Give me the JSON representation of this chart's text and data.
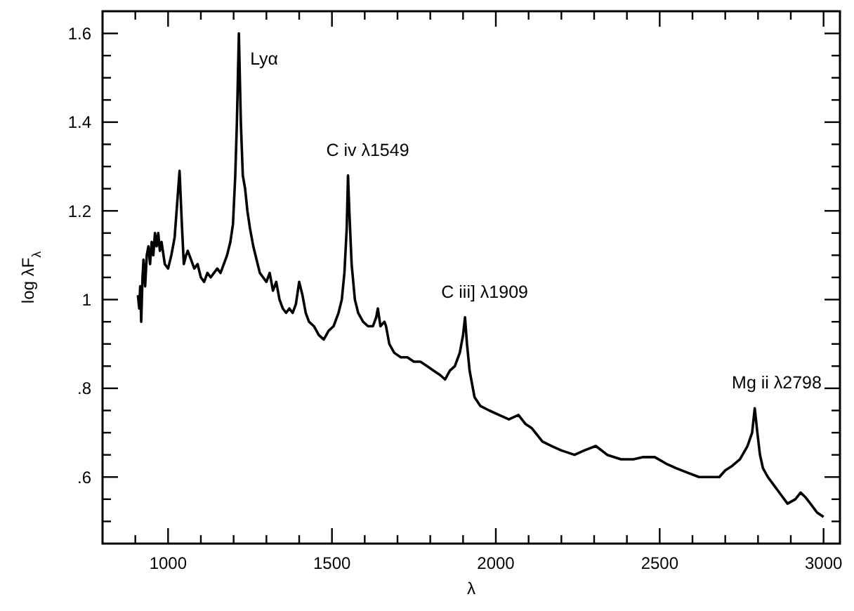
{
  "chart_data": {
    "type": "line",
    "xlabel": "λ",
    "ylabel": "log λF$_{λ}$",
    "x": [
      908,
      912,
      915,
      918,
      922,
      925,
      930,
      935,
      940,
      945,
      950,
      955,
      960,
      965,
      970,
      975,
      980,
      990,
      1000,
      1010,
      1020,
      1028,
      1035,
      1042,
      1048,
      1055,
      1060,
      1070,
      1080,
      1090,
      1100,
      1110,
      1120,
      1130,
      1140,
      1150,
      1160,
      1170,
      1180,
      1190,
      1198,
      1205,
      1210,
      1216,
      1222,
      1228,
      1235,
      1242,
      1250,
      1260,
      1270,
      1280,
      1290,
      1300,
      1310,
      1320,
      1330,
      1340,
      1350,
      1360,
      1370,
      1380,
      1390,
      1400,
      1410,
      1420,
      1430,
      1445,
      1460,
      1475,
      1490,
      1505,
      1520,
      1530,
      1538,
      1545,
      1549,
      1553,
      1560,
      1570,
      1580,
      1595,
      1610,
      1625,
      1635,
      1640,
      1648,
      1660,
      1665,
      1675,
      1690,
      1710,
      1730,
      1750,
      1770,
      1790,
      1810,
      1830,
      1845,
      1860,
      1875,
      1890,
      1900,
      1906,
      1912,
      1920,
      1935,
      1953,
      1980,
      2010,
      2040,
      2069,
      2090,
      2110,
      2142,
      2170,
      2200,
      2240,
      2270,
      2305,
      2340,
      2382,
      2420,
      2450,
      2485,
      2520,
      2550,
      2584,
      2620,
      2650,
      2682,
      2700,
      2721,
      2745,
      2768,
      2782,
      2790,
      2798,
      2806,
      2815,
      2830,
      2850,
      2870,
      2890,
      2914,
      2930,
      2944,
      2960,
      2980,
      3000
    ],
    "values": [
      1.01,
      0.98,
      1.03,
      0.95,
      1.05,
      1.09,
      1.03,
      1.1,
      1.12,
      1.08,
      1.13,
      1.1,
      1.15,
      1.12,
      1.15,
      1.11,
      1.13,
      1.08,
      1.07,
      1.1,
      1.14,
      1.22,
      1.29,
      1.17,
      1.08,
      1.1,
      1.11,
      1.09,
      1.07,
      1.08,
      1.05,
      1.04,
      1.06,
      1.05,
      1.06,
      1.07,
      1.06,
      1.08,
      1.1,
      1.13,
      1.17,
      1.28,
      1.4,
      1.6,
      1.4,
      1.28,
      1.25,
      1.2,
      1.16,
      1.12,
      1.09,
      1.06,
      1.05,
      1.04,
      1.06,
      1.02,
      1.04,
      1.0,
      0.98,
      0.97,
      0.98,
      0.97,
      0.99,
      1.04,
      1.01,
      0.97,
      0.95,
      0.94,
      0.92,
      0.91,
      0.93,
      0.94,
      0.97,
      1.0,
      1.06,
      1.16,
      1.28,
      1.2,
      1.08,
      1.0,
      0.97,
      0.95,
      0.94,
      0.94,
      0.96,
      0.98,
      0.94,
      0.95,
      0.94,
      0.9,
      0.88,
      0.87,
      0.87,
      0.86,
      0.86,
      0.85,
      0.84,
      0.83,
      0.82,
      0.84,
      0.85,
      0.88,
      0.92,
      0.96,
      0.9,
      0.84,
      0.78,
      0.76,
      0.75,
      0.74,
      0.73,
      0.74,
      0.72,
      0.71,
      0.68,
      0.67,
      0.66,
      0.65,
      0.66,
      0.67,
      0.65,
      0.64,
      0.64,
      0.645,
      0.645,
      0.63,
      0.62,
      0.61,
      0.6,
      0.6,
      0.6,
      0.615,
      0.625,
      0.64,
      0.67,
      0.7,
      0.755,
      0.7,
      0.65,
      0.62,
      0.6,
      0.58,
      0.56,
      0.54,
      0.55,
      0.565,
      0.555,
      0.54,
      0.52,
      0.51
    ],
    "color": "#000000",
    "xlim": [
      800,
      3050
    ],
    "ylim": [
      0.45,
      1.65
    ],
    "xticks": [
      {
        "value": 900,
        "label": null
      },
      1000,
      {
        "value": 1100,
        "label": null
      },
      {
        "value": 1200,
        "label": null
      },
      {
        "value": 1300,
        "label": null
      },
      {
        "value": 1400,
        "label": null
      },
      1500,
      {
        "value": 1600,
        "label": null
      },
      {
        "value": 1700,
        "label": null
      },
      {
        "value": 1800,
        "label": null
      },
      {
        "value": 1900,
        "label": null
      },
      2000,
      {
        "value": 2100,
        "label": null
      },
      {
        "value": 2200,
        "label": null
      },
      {
        "value": 2300,
        "label": null
      },
      {
        "value": 2400,
        "label": null
      },
      2500,
      {
        "value": 2600,
        "label": null
      },
      {
        "value": 2700,
        "label": null
      },
      {
        "value": 2800,
        "label": null
      },
      {
        "value": 2900,
        "label": null
      },
      3000
    ],
    "yticks": [
      {
        "value": 0.5,
        "label": null
      },
      {
        "value": 0.55,
        "label": null
      },
      {
        "value": 0.6,
        "label": ".6"
      },
      {
        "value": 0.65,
        "label": null
      },
      {
        "value": 0.7,
        "label": null
      },
      {
        "value": 0.75,
        "label": null
      },
      {
        "value": 0.8,
        "label": ".8"
      },
      {
        "value": 0.85,
        "label": null
      },
      {
        "value": 0.9,
        "label": null
      },
      {
        "value": 0.95,
        "label": null
      },
      1,
      {
        "value": 1.05,
        "label": null
      },
      {
        "value": 1.1,
        "label": null
      },
      {
        "value": 1.15,
        "label": null
      },
      {
        "value": 1.2,
        "label": "1.2"
      },
      {
        "value": 1.25,
        "label": null
      },
      {
        "value": 1.3,
        "label": null
      },
      {
        "value": 1.35,
        "label": null
      },
      {
        "value": 1.4,
        "label": "1.4"
      },
      {
        "value": 1.45,
        "label": null
      },
      {
        "value": 1.5,
        "label": null
      },
      {
        "value": 1.55,
        "label": null
      },
      {
        "value": 1.6,
        "label": "1.6"
      }
    ],
    "annotations": [
      {
        "text": "Lyα",
        "x": 1216,
        "y": 1.6
      },
      {
        "text": "C iv λ1549",
        "x": 1549,
        "y": 1.28
      },
      {
        "text": "C iii] λ1909",
        "x": 1906,
        "y": 0.96
      },
      {
        "text": "Mg ii λ2798",
        "x": 2798,
        "y": 0.755
      }
    ],
    "grid": false,
    "marker": "none",
    "line_style": "solid"
  }
}
